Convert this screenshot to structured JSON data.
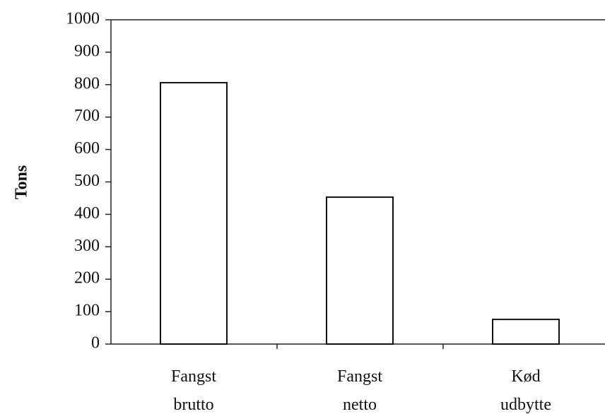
{
  "chart_data": {
    "type": "bar",
    "y_label": "Tons",
    "categories": [
      "Fangst brutto",
      "Fangst netto",
      "Kød udbytte"
    ],
    "values": [
      806,
      453,
      76
    ],
    "color": "#ffffff",
    "ylim": [
      0,
      1000
    ],
    "yticks": [
      0,
      100,
      200,
      300,
      400,
      500,
      600,
      700,
      800,
      900,
      1000
    ],
    "grid": false
  }
}
